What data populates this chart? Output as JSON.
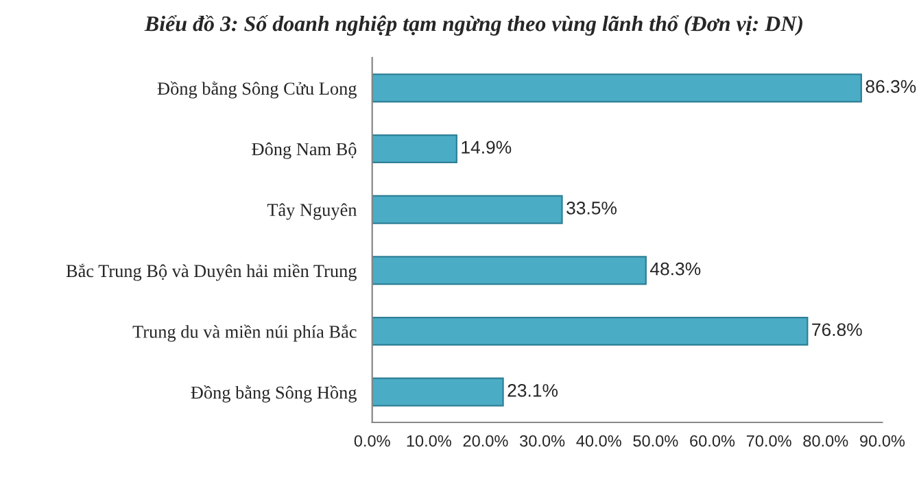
{
  "chart_data": {
    "type": "bar",
    "orientation": "horizontal",
    "title": "Biểu đồ 3: Số doanh nghiệp tạm ngừng theo vùng lãnh thổ (Đơn vị: DN)",
    "categories": [
      "Đồng bằng Sông Cửu Long",
      "Đông Nam Bộ",
      "Tây Nguyên",
      "Bắc Trung Bộ và Duyên hải miền Trung",
      "Trung du và miền núi phía Bắc",
      "Đồng bằng Sông Hồng"
    ],
    "values": [
      86.3,
      14.9,
      33.5,
      48.3,
      76.8,
      23.1
    ],
    "value_labels": [
      "86.3%",
      "14.9%",
      "33.5%",
      "48.3%",
      "76.8%",
      "23.1%"
    ],
    "color": "#4bacc6",
    "xlim": [
      0,
      90
    ],
    "xticks": [
      {
        "value": 0,
        "label": "0.0%"
      },
      {
        "value": 10,
        "label": "10.0%"
      },
      {
        "value": 20,
        "label": "20.0%"
      },
      {
        "value": 30,
        "label": "30.0%"
      },
      {
        "value": 40,
        "label": "40.0%"
      },
      {
        "value": 50,
        "label": "50.0%"
      },
      {
        "value": 60,
        "label": "60.0%"
      },
      {
        "value": 70,
        "label": "70.0%"
      },
      {
        "value": 80,
        "label": "80.0%"
      },
      {
        "value": 90,
        "label": "90.0%"
      }
    ],
    "grid": false,
    "legend": false
  }
}
